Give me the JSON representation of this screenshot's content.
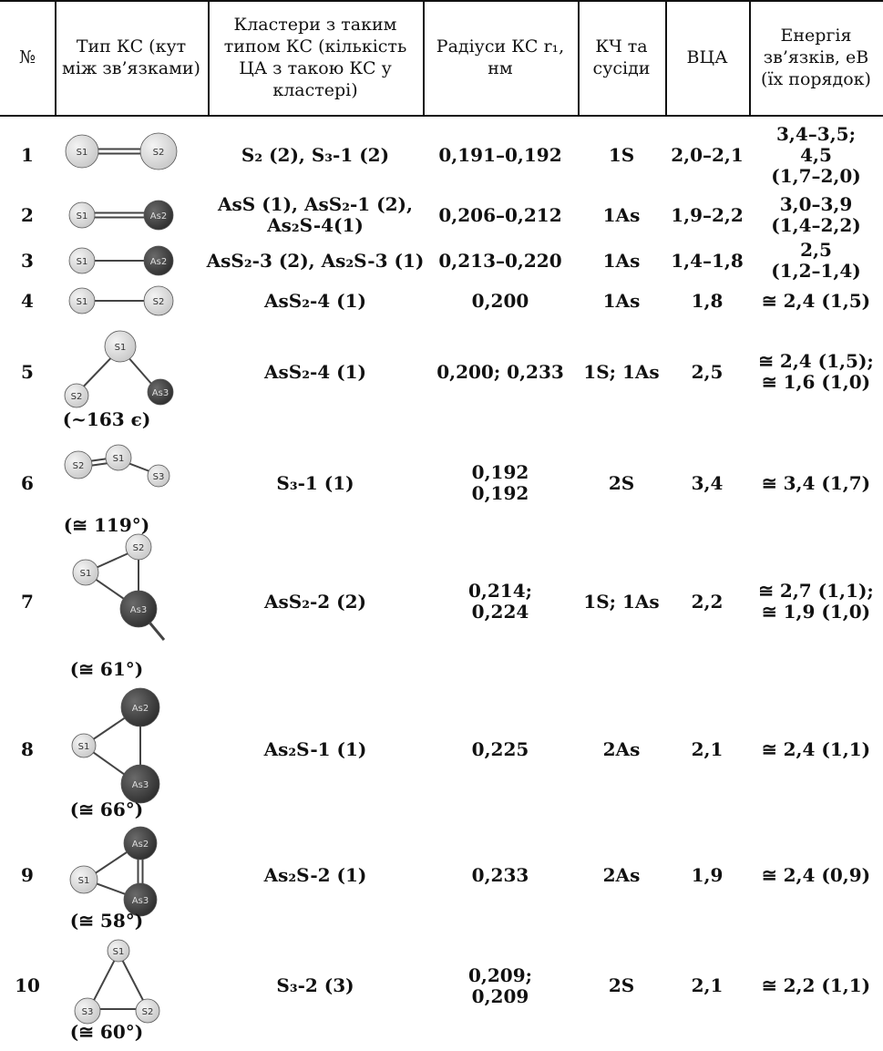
{
  "headers": {
    "num": "№",
    "type": "Тип КС (кут між зв’язками)",
    "clusters": "Кластери з таким типом КС (кількість ЦА з такою КС у кластері)",
    "radius": "Радіуси КС r₁, нм",
    "kch": "КЧ та сусіди",
    "vca": "ВЦА",
    "energy": "Енергія зв’язків, еВ (їх порядок)"
  },
  "rows": [
    {
      "num": "1",
      "clusters": "S₂ (2), S₃-1 (2)",
      "radius": "0,191–0,192",
      "kch": "1S",
      "vca": "2,0–2,1",
      "energy": [
        "3,4–3,5;",
        "4,5",
        "(1,7–2,0)"
      ],
      "atoms": [
        "S1",
        "S2"
      ],
      "angle": ""
    },
    {
      "num": "2",
      "clusters": "AsS (1), AsS₂-1 (2), As₂S-4(1)",
      "radius": "0,206–0,212",
      "kch": "1As",
      "vca": "1,9–2,2",
      "energy": [
        "3,0–3,9",
        "(1,4–2,2)"
      ],
      "atoms": [
        "S1",
        "As2"
      ],
      "angle": ""
    },
    {
      "num": "3",
      "clusters": "AsS₂-3 (2), As₂S-3 (1)",
      "radius": "0,213–0,220",
      "kch": "1As",
      "vca": "1,4–1,8",
      "energy": [
        "2,5",
        "(1,2–1,4)"
      ],
      "atoms": [
        "S1",
        "As2"
      ],
      "angle": ""
    },
    {
      "num": "4",
      "clusters": "AsS₂-4 (1)",
      "radius": "0,200",
      "kch": "1As",
      "vca": "1,8",
      "energy": [
        "≅ 2,4 (1,5)"
      ],
      "atoms": [
        "S1",
        "S2"
      ],
      "angle": ""
    },
    {
      "num": "5",
      "clusters": "AsS₂-4 (1)",
      "radius": "0,200; 0,233",
      "kch": "1S; 1As",
      "vca": "2,5",
      "energy": [
        "≅ 2,4 (1,5);",
        "≅ 1,6 (1,0)"
      ],
      "atoms": [
        "S1",
        "S2",
        "As3"
      ],
      "angle": "(~163 є)"
    },
    {
      "num": "6",
      "clusters": "S₃-1 (1)",
      "radius": [
        "0,192",
        "0,192"
      ],
      "kch": "2S",
      "vca": "3,4",
      "energy": [
        "≅ 3,4 (1,7)"
      ],
      "atoms": [
        "S1",
        "S2",
        "S3"
      ],
      "angle": "(≅ 119°)"
    },
    {
      "num": "7",
      "clusters": "AsS₂-2 (2)",
      "radius": [
        "0,214;",
        "0,224"
      ],
      "kch": "1S; 1As",
      "vca": "2,2",
      "energy": [
        "≅ 2,7 (1,1);",
        "≅ 1,9 (1,0)"
      ],
      "atoms": [
        "S1",
        "S2",
        "As3"
      ],
      "angle": "(≅ 61°)"
    },
    {
      "num": "8",
      "clusters": "As₂S-1 (1)",
      "radius": "0,225",
      "kch": "2As",
      "vca": "2,1",
      "energy": [
        "≅ 2,4 (1,1)"
      ],
      "atoms": [
        "S1",
        "As2",
        "As3"
      ],
      "angle": "(≅ 66°)"
    },
    {
      "num": "9",
      "clusters": "As₂S-2 (1)",
      "radius": "0,233",
      "kch": "2As",
      "vca": "1,9",
      "energy": [
        "≅ 2,4 (0,9)"
      ],
      "atoms": [
        "S1",
        "As2",
        "As3"
      ],
      "angle": "(≅ 58°)"
    },
    {
      "num": "10",
      "clusters": "S₃-2 (3)",
      "radius": [
        "0,209;",
        "0,209"
      ],
      "kch": "2S",
      "vca": "2,1",
      "energy": [
        "≅ 2,2 (1,1)"
      ],
      "atoms": [
        "S1",
        "S2",
        "S3"
      ],
      "angle": "(≅ 60°)"
    }
  ],
  "colors": {
    "sulfur": "#c8c8c8",
    "arsenic": "#2e2e2e",
    "line": "#111111"
  }
}
